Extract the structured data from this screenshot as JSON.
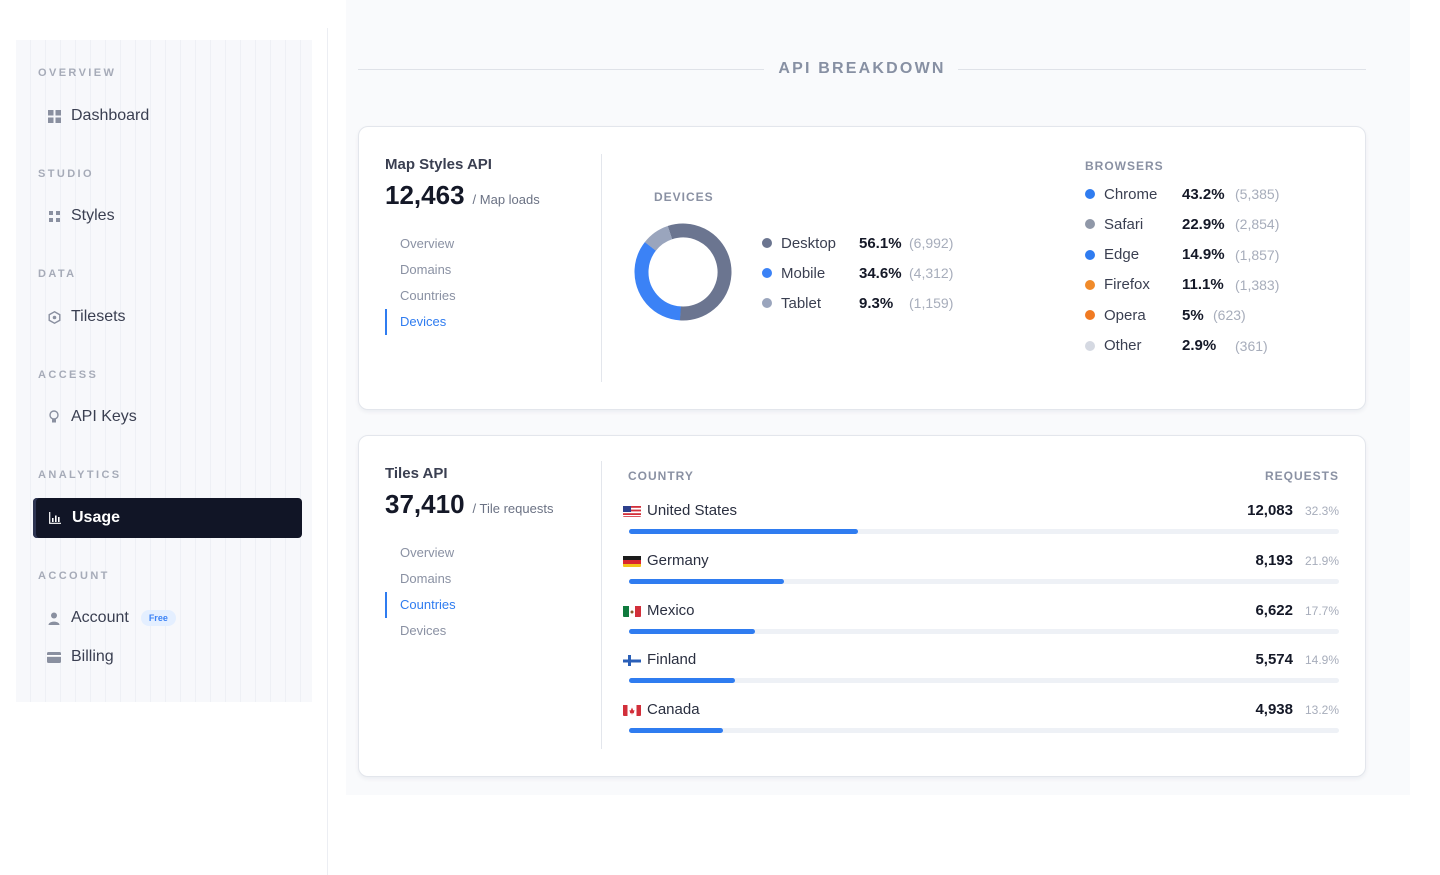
{
  "sidebar": {
    "sections": [
      {
        "label": "OVERVIEW",
        "items": [
          {
            "label": "Dashboard",
            "icon": "grid-icon"
          }
        ]
      },
      {
        "label": "STUDIO",
        "items": [
          {
            "label": "Styles",
            "icon": "dots-grid-icon"
          }
        ]
      },
      {
        "label": "DATA",
        "items": [
          {
            "label": "Tilesets",
            "icon": "hexagon-icon"
          }
        ]
      },
      {
        "label": "ACCESS",
        "items": [
          {
            "label": "API Keys",
            "icon": "lightbulb-icon"
          }
        ]
      },
      {
        "label": "ANALYTICS",
        "items": [
          {
            "label": "Usage",
            "icon": "bar-chart-icon",
            "active": true
          }
        ]
      },
      {
        "label": "ACCOUNT",
        "items": [
          {
            "label": "Account",
            "icon": "user-icon",
            "badge": "Free"
          },
          {
            "label": "Billing",
            "icon": "card-icon"
          }
        ]
      }
    ]
  },
  "main": {
    "heading": "API BREAKDOWN",
    "map_styles": {
      "title": "Map Styles API",
      "total": "12,463",
      "unit": "/ Map loads",
      "subnav": [
        "Overview",
        "Domains",
        "Countries",
        "Devices"
      ],
      "active_subnav": "Devices",
      "devices_label": "DEVICES",
      "browsers_label": "BROWSERS"
    },
    "tiles": {
      "title": "Tiles API",
      "total": "37,410",
      "unit": "/ Tile requests",
      "subnav": [
        "Overview",
        "Domains",
        "Countries",
        "Devices"
      ],
      "active_subnav": "Countries",
      "country_label": "COUNTRY",
      "requests_label": "REQUESTS"
    }
  },
  "chart_data": [
    {
      "type": "pie",
      "title": "DEVICES",
      "categories": [
        "Desktop",
        "Mobile",
        "Tablet"
      ],
      "values": [
        56.1,
        34.6,
        9.3
      ],
      "counts": [
        "(6,992)",
        "(4,312)",
        "(1,159)"
      ],
      "pct_labels": [
        "56.1%",
        "34.6%",
        "9.3%"
      ],
      "colors": [
        "#6b7590",
        "#3b82f6",
        "#9aa5bd"
      ]
    },
    {
      "type": "table",
      "title": "BROWSERS",
      "categories": [
        "Chrome",
        "Safari",
        "Edge",
        "Firefox",
        "Opera",
        "Other"
      ],
      "values": [
        43.2,
        22.9,
        14.9,
        11.1,
        5,
        2.9
      ],
      "pct_labels": [
        "43.2%",
        "22.9%",
        "14.9%",
        "11.1%",
        "5%",
        "2.9%"
      ],
      "counts": [
        "(5,385)",
        "(2,854)",
        "(1,857)",
        "(1,383)",
        "(623)",
        "(361)"
      ],
      "colors": [
        "#2f7cf0",
        "#9098a8",
        "#2f7cf0",
        "#f08a2a",
        "#f07a22",
        "#d5d9e2"
      ]
    },
    {
      "type": "bar",
      "xlabel": "COUNTRY",
      "ylabel": "REQUESTS",
      "categories": [
        "United States",
        "Germany",
        "Mexico",
        "Finland",
        "Canada"
      ],
      "values": [
        12083,
        8193,
        6622,
        5574,
        4938
      ],
      "value_labels": [
        "12,083",
        "8,193",
        "6,622",
        "5,574",
        "4,938"
      ],
      "pct_labels": [
        "32.3%",
        "21.9%",
        "17.7%",
        "14.9%",
        "13.2%"
      ],
      "bar_fraction": [
        0.323,
        0.219,
        0.177,
        0.149,
        0.132
      ],
      "flags": [
        "us-flag-icon",
        "germany-flag-icon",
        "mexico-flag-icon",
        "finland-flag-icon",
        "canada-flag-icon"
      ]
    }
  ]
}
